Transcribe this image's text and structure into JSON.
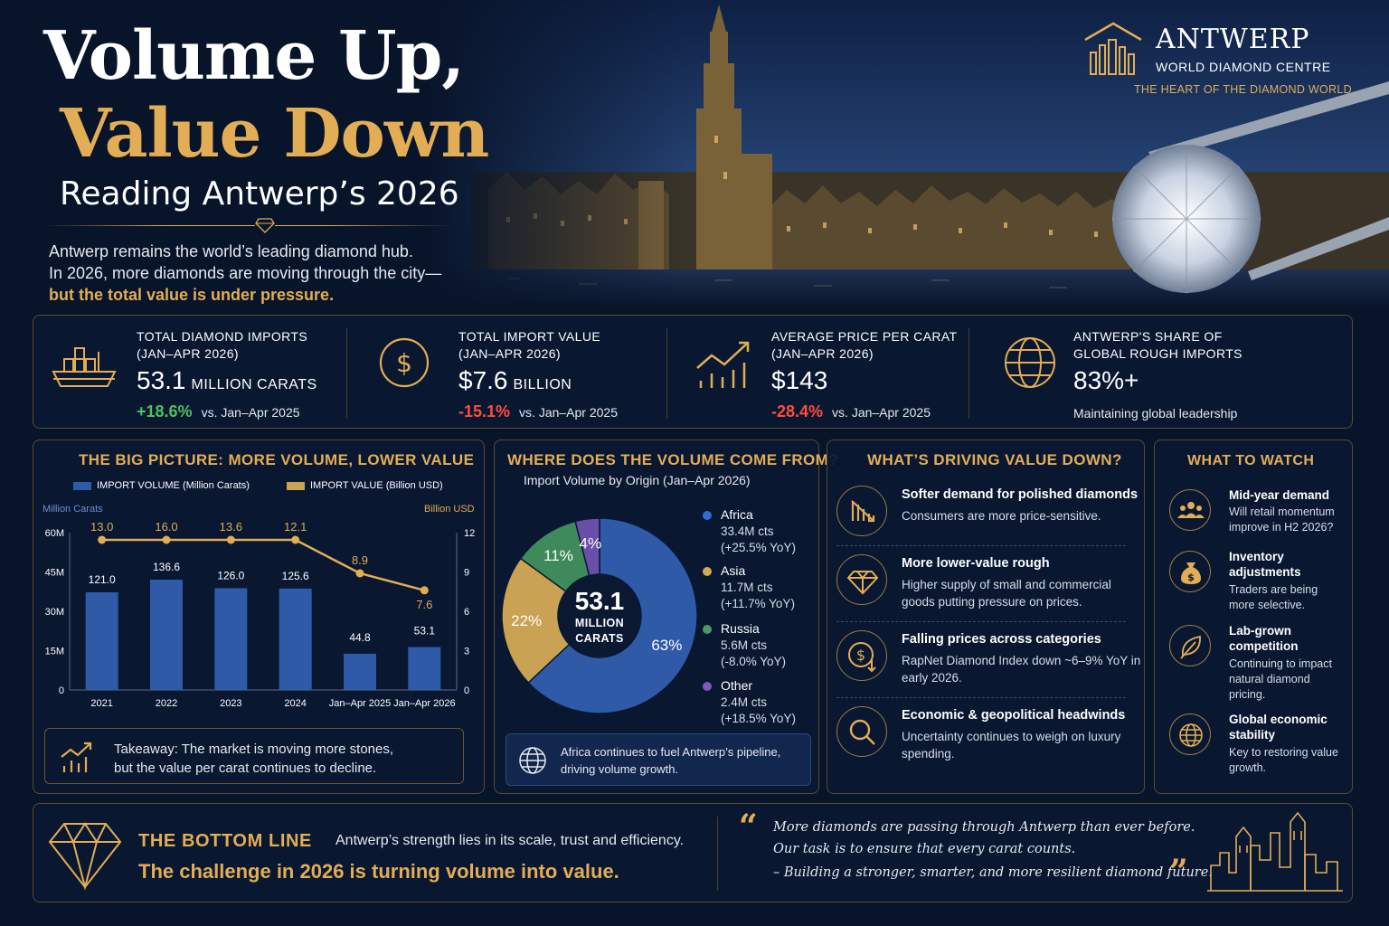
{
  "header": {
    "title_line1": "Volume Up,",
    "title_line2": "Value Down",
    "subtitle": "Reading Antwerp’s 2026",
    "intro_line1": "Antwerp remains the world’s leading diamond hub.",
    "intro_line2": "In 2026, more diamonds are moving through the city—",
    "intro_highlight": "but the total value is under pressure."
  },
  "logo": {
    "name": "ANTWERP",
    "subname": "WORLD DIAMOND CENTRE",
    "tagline": "THE HEART OF THE DIAMOND WORLD"
  },
  "kpis": [
    {
      "label_line1": "TOTAL DIAMOND IMPORTS",
      "label_line2": "(JAN–APR 2026)",
      "value": "53.1",
      "unit": "MILLION CARATS",
      "change": "+18.6%",
      "vs": "vs. Jan–Apr 2025",
      "icon": "cargo-ship-icon"
    },
    {
      "label_line1": "TOTAL IMPORT VALUE",
      "label_line2": "(JAN–APR 2026)",
      "value": "$7.6",
      "unit": "BILLION",
      "change": "-15.1%",
      "vs": "vs. Jan–Apr 2025",
      "icon": "dollar-coin-icon"
    },
    {
      "label_line1": "AVERAGE PRICE PER CARAT",
      "label_line2": "(JAN–APR 2026)",
      "value": "$143",
      "unit": "",
      "change": "-28.4%",
      "vs": "vs. Jan–Apr 2025",
      "icon": "trend-chart-icon"
    },
    {
      "label_line1": "ANTWERP'S SHARE OF",
      "label_line2": "GLOBAL ROUGH IMPORTS",
      "value": "83%+",
      "unit": "",
      "note": "Maintaining global leadership",
      "icon": "globe-icon"
    }
  ],
  "big_picture": {
    "title": "THE BIG PICTURE: MORE VOLUME, LOWER VALUE",
    "takeaway_line1": "Takeaway: The market is moving more stones,",
    "takeaway_line2": "but the value per carat continues to decline."
  },
  "chart_data": [
    {
      "type": "bar",
      "categories": [
        "2021",
        "2022",
        "2023",
        "2024",
        "Jan–Apr 2025",
        "Jan–Apr 2026"
      ],
      "series": [
        {
          "name": "IMPORT VOLUME (Million Carats)",
          "type": "bar",
          "axis": "left",
          "color": "#2f5aa8",
          "values": [
            121.0,
            136.6,
            126.0,
            125.6,
            44.8,
            53.1
          ],
          "labels": [
            "121.0",
            "136.6",
            "126.0",
            "125.6",
            "44.8",
            "53.1"
          ]
        },
        {
          "name": "IMPORT VALUE (Billion USD)",
          "type": "line",
          "axis": "right",
          "color": "#e2ad55",
          "values": [
            13.0,
            16.0,
            13.6,
            12.1,
            8.9,
            7.6
          ],
          "labels": [
            "13.0",
            "16.0",
            "13.6",
            "12.1",
            "8.9",
            "7.6"
          ]
        }
      ],
      "y_left": {
        "label": "Million Carats",
        "ticks": [
          "0",
          "15M",
          "30M",
          "45M",
          "60M"
        ]
      },
      "y_right": {
        "label": "Billion USD",
        "range": [
          0,
          12
        ],
        "ticks": [
          "0",
          "3",
          "6",
          "9",
          "12"
        ]
      }
    },
    {
      "type": "pie",
      "title": "Import Volume by Origin (Jan–Apr 2026)",
      "center_value": "53.1",
      "center_label_line1": "MILLION",
      "center_label_line2": "CARATS",
      "slices": [
        {
          "name": "Africa",
          "value": 63,
          "label": "63%",
          "volume": "33.4M cts",
          "yoy": "(+25.5% YoY)",
          "color": "#2f5aa8"
        },
        {
          "name": "Asia",
          "value": 22,
          "label": "22%",
          "volume": "11.7M cts",
          "yoy": "(+11.7% YoY)",
          "color": "#c9a253"
        },
        {
          "name": "Russia",
          "value": 11,
          "label": "11%",
          "volume": "5.6M cts",
          "yoy": "(-8.0% YoY)",
          "color": "#3f8a5a"
        },
        {
          "name": "Other",
          "value": 4,
          "label": "4%",
          "volume": "2.4M cts",
          "yoy": "(+18.5% YoY)",
          "color": "#6a4fa8"
        }
      ]
    }
  ],
  "origin": {
    "title": "WHERE DOES THE VOLUME COME FROM?",
    "note_line1": "Africa continues to fuel Antwerp’s pipeline,",
    "note_line2": "driving volume growth."
  },
  "drivers": {
    "title": "WHAT’S DRIVING VALUE DOWN?",
    "items": [
      {
        "title": "Softer demand for polished diamonds",
        "text": "Consumers are more price-sensitive.",
        "icon": "declining-bars-icon"
      },
      {
        "title": "More lower-value rough",
        "text": "Higher supply of small and commercial goods putting pressure on prices.",
        "icon": "diamond-outline-icon"
      },
      {
        "title": "Falling prices across categories",
        "text": "RapNet Diamond Index down ~6–9% YoY in early 2026.",
        "icon": "dollar-down-icon"
      },
      {
        "title": "Economic & geopolitical headwinds",
        "text": "Uncertainty continues to weigh on luxury spending.",
        "icon": "magnifier-icon"
      }
    ]
  },
  "watch": {
    "title": "WHAT TO WATCH",
    "items": [
      {
        "title": "Mid-year demand",
        "text": "Will retail momentum improve in H2 2026?",
        "icon": "people-icon"
      },
      {
        "title": "Inventory adjustments",
        "text": "Traders are being more selective.",
        "icon": "money-bag-icon"
      },
      {
        "title": "Lab-grown competition",
        "text": "Continuing to impact natural diamond pricing.",
        "icon": "leaf-icon"
      },
      {
        "title": "Global economic stability",
        "text": "Key to restoring value growth.",
        "icon": "globe-icon"
      }
    ]
  },
  "bottom_line": {
    "title": "THE BOTTOM LINE",
    "text": "Antwerp’s strength lies in its scale, trust and efficiency.",
    "challenge": "The challenge in 2026 is turning volume into value.",
    "quote_line1": "More diamonds are passing through Antwerp than ever before.",
    "quote_line2": "Our task is to ensure that every carat counts.",
    "quote_line3": "– Building a stronger, smarter, and more resilient diamond future.",
    "open_quote": "“",
    "close_quote": "”"
  }
}
